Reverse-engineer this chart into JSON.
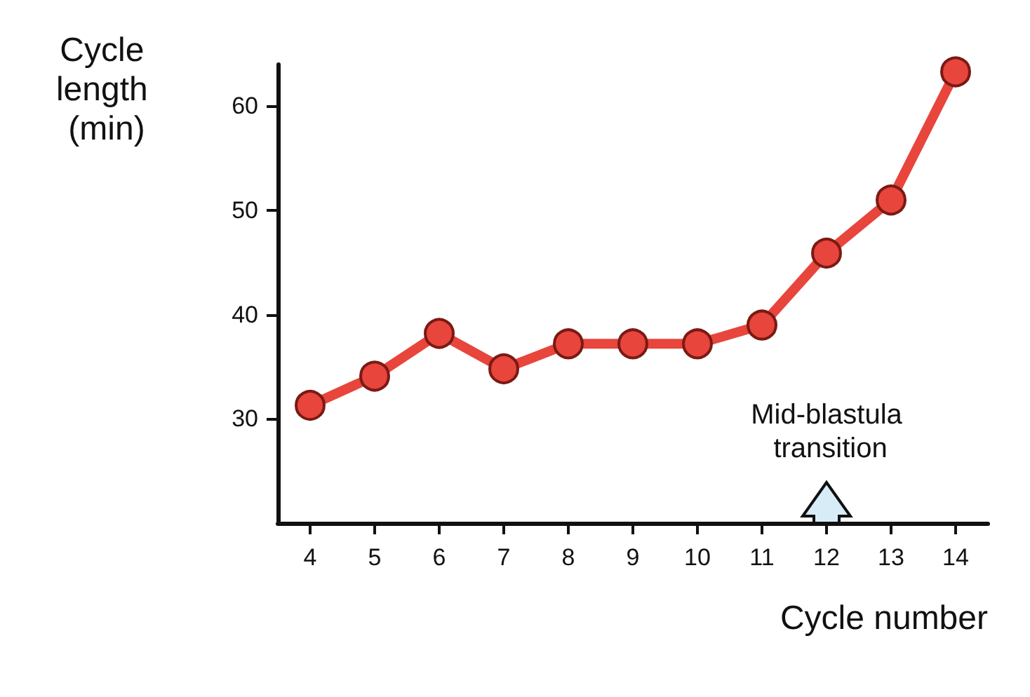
{
  "chart_data": {
    "type": "line",
    "xlabel": "Cycle number",
    "ylabel": "Cycle length (min)",
    "categories": [
      "4",
      "5",
      "6",
      "7",
      "8",
      "9",
      "10",
      "11",
      "12",
      "13",
      "14"
    ],
    "series": [
      {
        "color": "#e8453c",
        "values": [
          31.3,
          34.1,
          38.2,
          34.8,
          37.2,
          37.2,
          37.2,
          39,
          45.9,
          51,
          63.3
        ]
      }
    ],
    "ylim": [
      20,
      64
    ],
    "yticks": [
      30,
      40,
      50,
      60
    ],
    "grid": false,
    "marker": "circle",
    "line_style": "solid",
    "annotations": [
      "Mid-blastula transition"
    ]
  }
}
